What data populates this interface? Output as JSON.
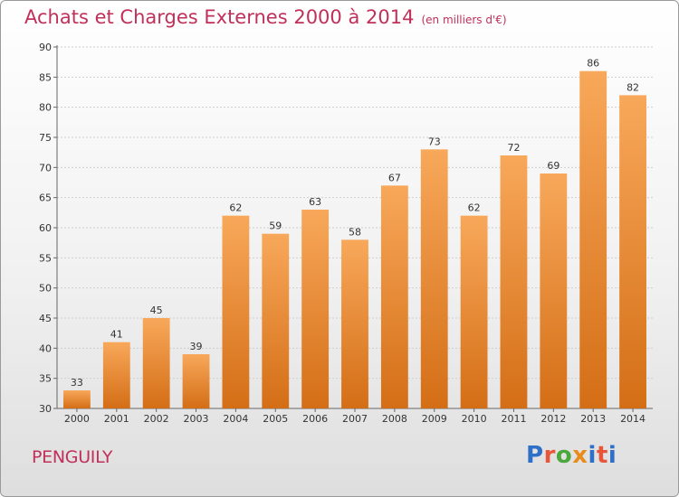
{
  "chart_data": {
    "type": "bar",
    "title": "Achats et Charges Externes 2000 à 2014",
    "subtitle": "(en milliers d'€)",
    "categories": [
      "2000",
      "2001",
      "2002",
      "2003",
      "2004",
      "2005",
      "2006",
      "2007",
      "2008",
      "2009",
      "2010",
      "2011",
      "2012",
      "2013",
      "2014"
    ],
    "values": [
      33,
      41,
      45,
      39,
      62,
      59,
      63,
      58,
      67,
      73,
      62,
      72,
      69,
      86,
      82
    ],
    "ylim": [
      30,
      90
    ],
    "yticks": [
      30,
      35,
      40,
      45,
      50,
      55,
      60,
      65,
      70,
      75,
      80,
      85,
      90
    ],
    "grid": true,
    "colors": {
      "bar_light": "#f8a85a",
      "bar_dark": "#d46e16",
      "title": "#c0305a"
    }
  },
  "footer": {
    "place": "PENGUILY",
    "logo": "Proxiti"
  }
}
